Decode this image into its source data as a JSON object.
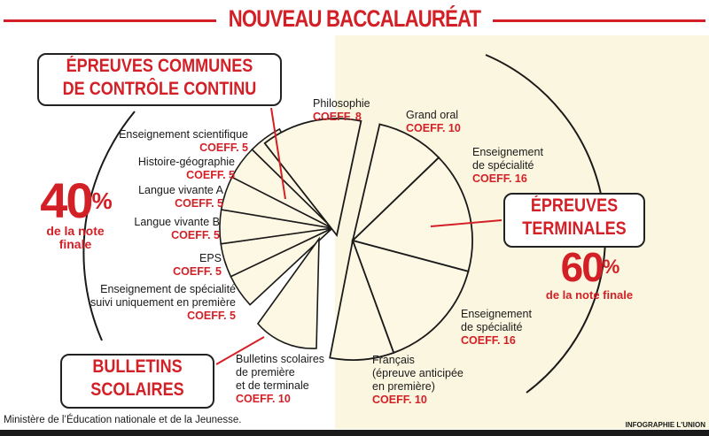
{
  "title": "NOUVEAU BACCALAURÉAT",
  "left_box": {
    "line1": "ÉPREUVES COMMUNES",
    "line2": "DE CONTRÔLE CONTINU"
  },
  "left_percent": {
    "value": "40",
    "sign": "%",
    "line1": "de la note",
    "line2": "finale"
  },
  "bulletins_box": {
    "line1": "BULLETINS",
    "line2": "SCOLAIRES"
  },
  "right_box": {
    "line1": "ÉPREUVES",
    "line2": "TERMINALES"
  },
  "right_percent": {
    "value": "60",
    "sign": "%",
    "caption": "de la note finale"
  },
  "left_items": [
    {
      "name": "Enseignement scientifique",
      "coef": "COEFF. 5"
    },
    {
      "name": "Histoire-géographie",
      "coef": "COEFF. 5"
    },
    {
      "name": "Langue vivante A",
      "coef": "COEFF. 5"
    },
    {
      "name": "Langue vivante B",
      "coef": "COEFF. 5"
    },
    {
      "name": "EPS",
      "coef": "COEFF. 5"
    },
    {
      "name1": "Enseignement de spécialité",
      "name2": "suivi uniquement en première",
      "coef": "COEFF. 5"
    }
  ],
  "bulletins_item": {
    "line1": "Bulletins scolaires",
    "line2": "de première",
    "line3": "et de terminale",
    "coef": "COEFF. 10"
  },
  "right_items": [
    {
      "name": "Philosophie",
      "coef": "COEFF. 8"
    },
    {
      "name": "Grand oral",
      "coef": "COEFF. 10"
    },
    {
      "name1": "Enseignement",
      "name2": "de spécialité",
      "coef": "COEFF. 16"
    },
    {
      "name1": "Enseignement",
      "name2": "de spécialité",
      "coef": "COEFF. 16"
    },
    {
      "name1": "Français",
      "name2": "(épreuve anticipée",
      "name3": "en première)",
      "coef": "COEFF. 10"
    }
  ],
  "source": "Ministère de l’Éducation nationale et de la Jeunesse.",
  "credit": "INFOGRAPHIE L'UNION",
  "colors": {
    "accent": "#d32027",
    "panel": "#fbf6df",
    "wedge": "#fdf8e4",
    "ink": "#1a1a1a"
  }
}
